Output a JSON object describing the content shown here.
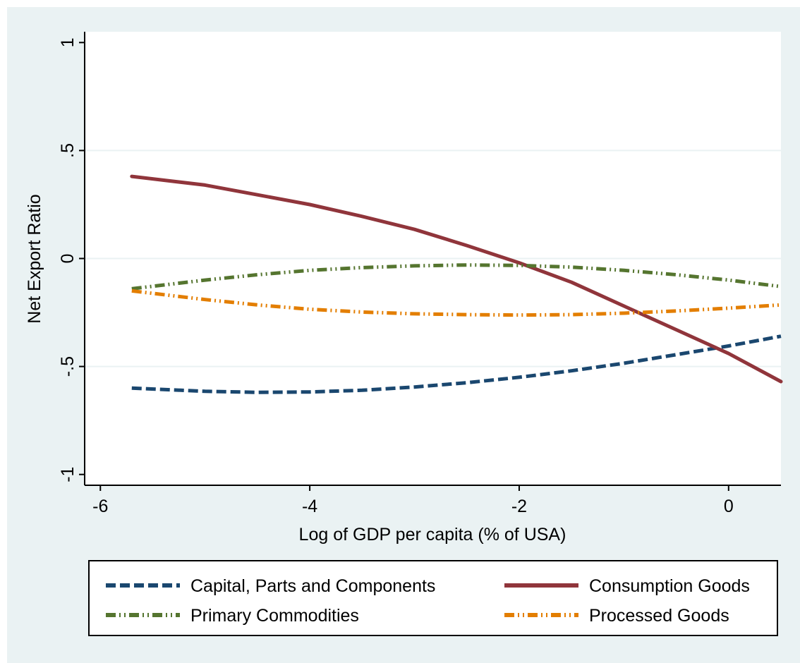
{
  "chart_data": {
    "type": "line",
    "title": "",
    "xlabel": "Log of GDP per capita (% of USA)",
    "ylabel": "Net Export Ratio",
    "xlim": [
      -6.15,
      0.5
    ],
    "ylim": [
      -1.05,
      1.05
    ],
    "x_ticks": [
      {
        "value": -6,
        "label": "-6"
      },
      {
        "value": -4,
        "label": "-4"
      },
      {
        "value": -2,
        "label": "-2"
      },
      {
        "value": 0,
        "label": "0"
      }
    ],
    "y_ticks": [
      {
        "value": -1,
        "label": "-1"
      },
      {
        "value": -0.5,
        "label": "-.5"
      },
      {
        "value": 0,
        "label": "0"
      },
      {
        "value": 0.5,
        "label": ".5"
      },
      {
        "value": 1,
        "label": "1"
      }
    ],
    "grid": "horizontal",
    "legend_position": "bottom",
    "series": [
      {
        "name": "Capital, Parts and Components",
        "color": "#1a476f",
        "style": "dash",
        "x": [
          -5.7,
          -5,
          -4.5,
          -4,
          -3.5,
          -3,
          -2.5,
          -2,
          -1.5,
          -1,
          -0.5,
          0,
          0.5
        ],
        "y": [
          -0.6,
          -0.615,
          -0.62,
          -0.618,
          -0.61,
          -0.595,
          -0.575,
          -0.55,
          -0.52,
          -0.485,
          -0.445,
          -0.405,
          -0.36
        ]
      },
      {
        "name": "Consumption Goods",
        "color": "#90353b",
        "style": "solid",
        "x": [
          -5.7,
          -5,
          -4.5,
          -4,
          -3.5,
          -3,
          -2.5,
          -2,
          -1.5,
          -1,
          -0.5,
          0,
          0.5
        ],
        "y": [
          0.38,
          0.34,
          0.295,
          0.25,
          0.195,
          0.135,
          0.06,
          -0.02,
          -0.11,
          -0.22,
          -0.33,
          -0.44,
          -0.57
        ]
      },
      {
        "name": "Primary Commodities",
        "color": "#55752f",
        "style": "dashdot",
        "x": [
          -5.7,
          -5,
          -4.5,
          -4,
          -3.5,
          -3,
          -2.5,
          -2,
          -1.5,
          -1,
          -0.5,
          0,
          0.5
        ],
        "y": [
          -0.14,
          -0.1,
          -0.075,
          -0.055,
          -0.042,
          -0.034,
          -0.03,
          -0.032,
          -0.04,
          -0.055,
          -0.075,
          -0.1,
          -0.13
        ]
      },
      {
        "name": "Processed Goods",
        "color": "#e37e00",
        "style": "dashdot",
        "x": [
          -5.7,
          -5,
          -4.5,
          -4,
          -3.5,
          -3,
          -2.5,
          -2,
          -1.5,
          -1,
          -0.5,
          0,
          0.5
        ],
        "y": [
          -0.15,
          -0.19,
          -0.215,
          -0.235,
          -0.248,
          -0.256,
          -0.26,
          -0.262,
          -0.26,
          -0.253,
          -0.243,
          -0.23,
          -0.215
        ]
      }
    ]
  }
}
